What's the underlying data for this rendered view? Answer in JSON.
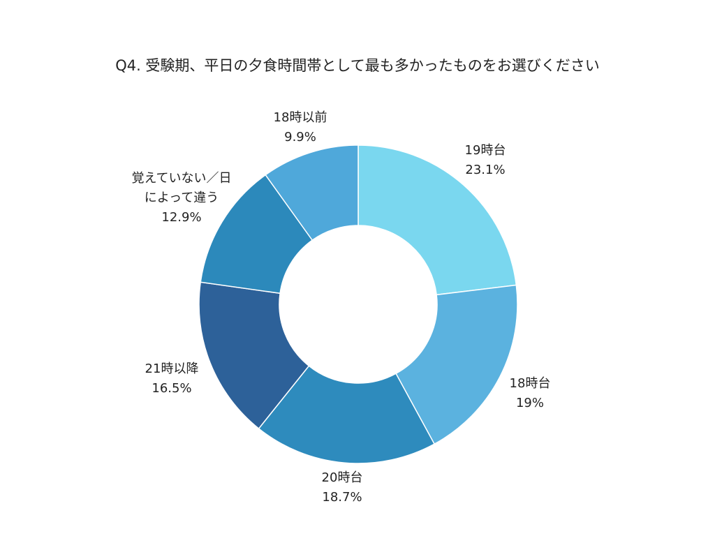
{
  "chart_data": {
    "type": "pie",
    "donut": true,
    "title": "Q4. 受験期、平日の夕食時間帯として最も多かったものをお選びください",
    "start": "top",
    "direction": "clockwise",
    "slices": [
      {
        "label": "19時台",
        "value": 23.1,
        "value_label": "23.1%",
        "color": "#7ad7ef"
      },
      {
        "label": "18時台",
        "value": 19,
        "value_label": "19%",
        "color": "#5bb2df"
      },
      {
        "label": "20時台",
        "value": 18.7,
        "value_label": "18.7%",
        "color": "#2e8bbd"
      },
      {
        "label": "21時以降",
        "value": 16.5,
        "value_label": "16.5%",
        "color": "#2d6199"
      },
      {
        "label": "覚えていない／日によって違う",
        "label_lines": [
          "覚えていない／日",
          "によって違う"
        ],
        "value": 12.9,
        "value_label": "12.9%",
        "color": "#2c89bb"
      },
      {
        "label": "18時以前",
        "value": 9.9,
        "value_label": "9.9%",
        "color": "#4fa8da"
      }
    ]
  }
}
